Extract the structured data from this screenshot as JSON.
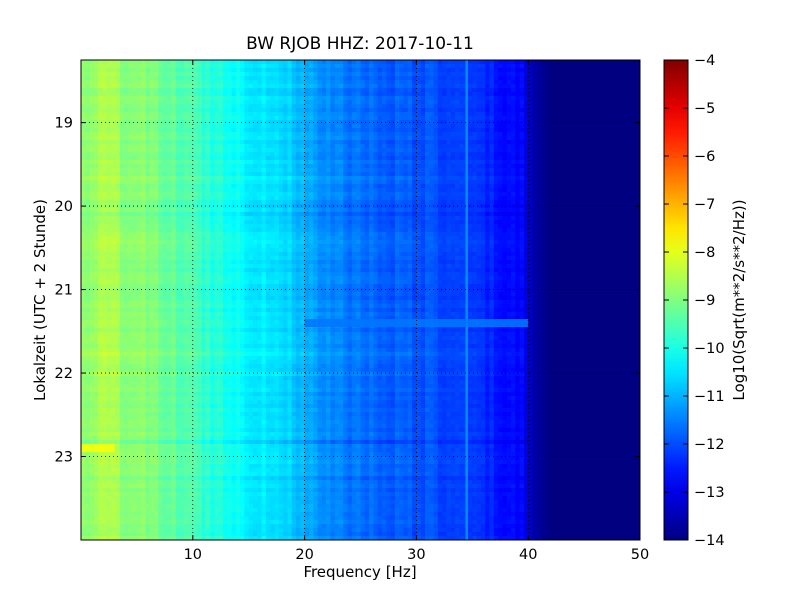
{
  "chart_data": {
    "type": "heatmap",
    "title": "BW RJOB HHZ: 2017-10-11",
    "xlabel": "Frequency [Hz]",
    "ylabel": "Lokalzeit (UTC + 2 Stunde)",
    "xlim": [
      0,
      50
    ],
    "ylim": [
      18.25,
      24.0
    ],
    "y_inverted": true,
    "grid": true,
    "x_ticks": [
      10,
      20,
      30,
      40,
      50
    ],
    "y_ticks": [
      19,
      20,
      21,
      22,
      23
    ],
    "colormap": "jet",
    "colorbar": {
      "label": "Log10(Sqrt(m**2/s**2/Hz))",
      "min": -14,
      "max": -4,
      "ticks": [
        -4,
        -5,
        -6,
        -7,
        -8,
        -9,
        -10,
        -11,
        -12,
        -13,
        -14
      ]
    },
    "spectrum_profile": {
      "frequency_hz": [
        0,
        2,
        5,
        9,
        10,
        15,
        19,
        20,
        22,
        27,
        30,
        34,
        37,
        39.5,
        40.5,
        42,
        50
      ],
      "log10_amplitude": [
        -8.9,
        -8.6,
        -8.9,
        -9.4,
        -9.6,
        -10.3,
        -10.7,
        -11.1,
        -11.4,
        -11.8,
        -11.9,
        -12.2,
        -12.5,
        -12.8,
        -13.6,
        -14,
        -14
      ]
    },
    "features": [
      {
        "name": "spectral line",
        "frequency_hz": 34.5,
        "log10_amplitude": -11.3
      },
      {
        "name": "transient",
        "time": 22.9,
        "frequency_range_hz": [
          0,
          3
        ],
        "log10_amplitude": -7.8
      },
      {
        "name": "transient",
        "time": 21.4,
        "frequency_range_hz": [
          20,
          40
        ],
        "log10_amplitude": -11.6
      }
    ]
  }
}
